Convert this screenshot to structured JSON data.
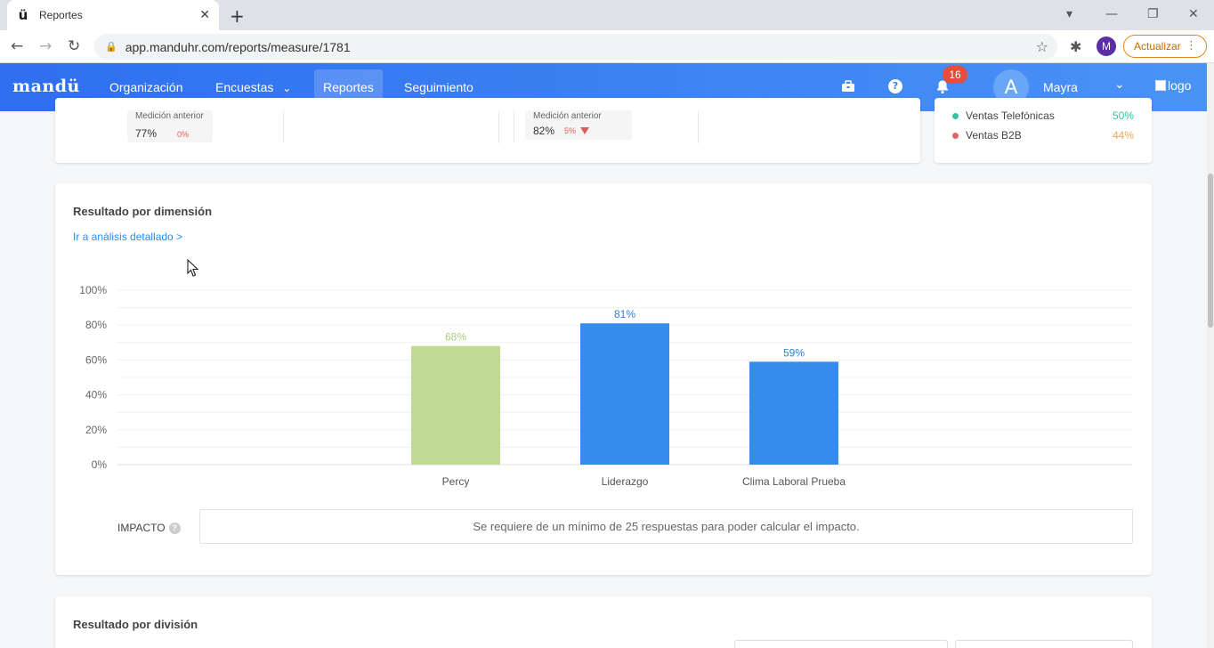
{
  "browser": {
    "tab_title": "Reportes",
    "favicon": "ü",
    "url": "app.manduhr.com/reports/measure/1781",
    "profile_initial": "M",
    "update_label": "Actualizar"
  },
  "app": {
    "brand": "mandü",
    "nav": [
      "Organización",
      "Encuestas",
      "Reportes",
      "Seguimiento"
    ],
    "active_nav": "Reportes",
    "notifications": "16",
    "avatar_initial": "A",
    "user_name": "Mayra",
    "logo_alt": "logo"
  },
  "top_cards": {
    "measure_1": {
      "label": "Medición anterior",
      "value": "77%",
      "delta": "0%"
    },
    "measure_2": {
      "label": "Medición anterior",
      "value": "82%",
      "delta": "5%"
    },
    "legend": [
      {
        "name": "Ventas Telefónicas",
        "pct": "50%",
        "dot_color": "#35c4a3",
        "pct_color": "#35c4a3"
      },
      {
        "name": "Ventas B2B",
        "pct": "44%",
        "dot_color": "#e06666",
        "pct_color": "#f0a85a"
      }
    ]
  },
  "dimension": {
    "title": "Resultado por dimensión",
    "link": "Ir a análisis detallado >",
    "impact_label": "IMPACTO",
    "impact_message": "Se requiere de un mínimo de 25 respuestas para poder calcular el impacto."
  },
  "chart_data": {
    "type": "bar",
    "categories": [
      "Percy",
      "Liderazgo",
      "Clima Laboral Prueba"
    ],
    "values": [
      68,
      81,
      59
    ],
    "data_labels": [
      "68%",
      "81%",
      "59%"
    ],
    "colors": [
      "#c0da96",
      "#368ced",
      "#368ced"
    ],
    "label_colors": [
      "#a9cc7c",
      "#2d7fd6",
      "#2d7fd6"
    ],
    "ylim": [
      0,
      100
    ],
    "yticks": [
      "0%",
      "20%",
      "40%",
      "60%",
      "80%",
      "100%"
    ],
    "ytick_values": [
      0,
      20,
      40,
      60,
      80,
      100
    ],
    "grid": true
  },
  "division": {
    "title": "Resultado por división"
  }
}
